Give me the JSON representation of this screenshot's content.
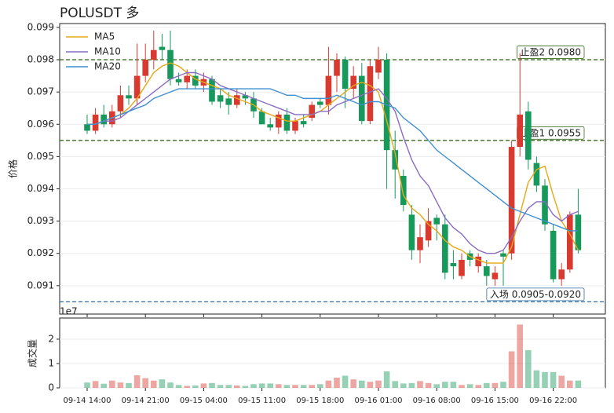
{
  "chart_data": {
    "type": "candlestick",
    "title": "POLUSDT 多",
    "y_label": "价格",
    "categories": [
      "09-14 14:00",
      null,
      null,
      null,
      null,
      null,
      null,
      "09-14 21:00",
      null,
      null,
      null,
      null,
      null,
      null,
      "09-15 04:00",
      null,
      null,
      null,
      null,
      null,
      null,
      "09-15 11:00",
      null,
      null,
      null,
      null,
      null,
      null,
      "09-15 18:00",
      null,
      null,
      null,
      null,
      null,
      null,
      "09-16 01:00",
      null,
      null,
      null,
      null,
      null,
      null,
      "09-16 08:00",
      null,
      null,
      null,
      null,
      null,
      null,
      "09-16 15:00",
      null,
      null,
      null,
      null,
      null,
      null,
      "09-16 22:00",
      null,
      null,
      null
    ],
    "open": [
      0.096,
      0.0958,
      0.0963,
      0.096,
      0.0964,
      0.0969,
      0.0968,
      0.0975,
      0.098,
      0.0984,
      0.0983,
      0.0974,
      0.0973,
      0.0975,
      0.0972,
      0.0974,
      0.0969,
      0.0968,
      0.0966,
      0.0969,
      0.0968,
      0.0964,
      0.096,
      0.0959,
      0.0963,
      0.0958,
      0.0961,
      0.0962,
      0.0967,
      0.0966,
      0.0975,
      0.098,
      0.0971,
      0.0975,
      0.0961,
      0.0976,
      0.098,
      0.0952,
      0.0944,
      0.0932,
      0.0921,
      0.0924,
      0.0931,
      0.0929,
      0.0917,
      0.0913,
      0.092,
      0.0916,
      0.0916,
      0.0912,
      0.092,
      0.092,
      0.0953,
      0.0964,
      0.0948,
      0.0941,
      0.0927,
      0.0912,
      0.0915,
      0.0932
    ],
    "high": [
      0.0963,
      0.0965,
      0.0966,
      0.0966,
      0.0972,
      0.0972,
      0.0985,
      0.0985,
      0.0989,
      0.0988,
      0.0989,
      0.0976,
      0.0977,
      0.0977,
      0.0976,
      0.0975,
      0.0971,
      0.097,
      0.0971,
      0.097,
      0.097,
      0.0965,
      0.0962,
      0.0964,
      0.0965,
      0.0962,
      0.0963,
      0.0967,
      0.0968,
      0.0984,
      0.0982,
      0.0981,
      0.0978,
      0.0979,
      0.098,
      0.0984,
      0.0982,
      0.0958,
      0.0946,
      0.0935,
      0.0929,
      0.0934,
      0.0932,
      0.0932,
      0.0921,
      0.092,
      0.0921,
      0.092,
      0.0918,
      0.0916,
      0.0921,
      0.0955,
      0.0982,
      0.0967,
      0.095,
      0.0943,
      0.0929,
      0.0917,
      0.0933,
      0.094
    ],
    "low": [
      0.0957,
      0.0957,
      0.0959,
      0.0959,
      0.0962,
      0.0966,
      0.0966,
      0.0973,
      0.0977,
      0.098,
      0.0972,
      0.0972,
      0.0971,
      0.0971,
      0.097,
      0.0966,
      0.0965,
      0.0963,
      0.0965,
      0.0966,
      0.0962,
      0.096,
      0.0958,
      0.0957,
      0.0957,
      0.0957,
      0.0959,
      0.0961,
      0.0965,
      0.0963,
      0.097,
      0.0965,
      0.0968,
      0.096,
      0.096,
      0.0974,
      0.094,
      0.0937,
      0.0933,
      0.0918,
      0.0917,
      0.0922,
      0.0924,
      0.0912,
      0.0912,
      0.0912,
      0.0916,
      0.0914,
      0.091,
      0.091,
      0.091,
      0.0918,
      0.095,
      0.0946,
      0.0939,
      0.0927,
      0.0911,
      0.091,
      0.0914,
      0.092
    ],
    "close": [
      0.0958,
      0.0963,
      0.096,
      0.0964,
      0.0969,
      0.0968,
      0.0975,
      0.098,
      0.0983,
      0.0983,
      0.0974,
      0.0973,
      0.0975,
      0.0972,
      0.0974,
      0.0967,
      0.0967,
      0.0966,
      0.0969,
      0.0968,
      0.0964,
      0.096,
      0.0959,
      0.0963,
      0.0958,
      0.0961,
      0.096,
      0.0966,
      0.0966,
      0.0975,
      0.098,
      0.0971,
      0.0975,
      0.0961,
      0.0978,
      0.098,
      0.0952,
      0.0946,
      0.0935,
      0.0921,
      0.0925,
      0.093,
      0.0929,
      0.0914,
      0.0916,
      0.0918,
      0.0918,
      0.0919,
      0.0913,
      0.0914,
      0.0919,
      0.0953,
      0.0963,
      0.0949,
      0.0941,
      0.0929,
      0.0912,
      0.0915,
      0.0932,
      0.0921
    ],
    "up_color": "#d83a2f",
    "down_color": "#16995a",
    "series": [
      {
        "name": "MA5",
        "color": "#e6a817",
        "values": [
          0.096,
          0.096,
          0.0961,
          0.0962,
          0.0963,
          0.0965,
          0.0968,
          0.0972,
          0.0976,
          0.0978,
          0.0979,
          0.0978,
          0.0976,
          0.0974,
          0.0973,
          0.0972,
          0.0971,
          0.0969,
          0.0968,
          0.0967,
          0.0966,
          0.0964,
          0.0963,
          0.0962,
          0.0961,
          0.0961,
          0.0962,
          0.0963,
          0.0964,
          0.0966,
          0.0968,
          0.097,
          0.0972,
          0.0973,
          0.0972,
          0.097,
          0.0961,
          0.0951,
          0.0938,
          0.0934,
          0.0932,
          0.0929,
          0.0927,
          0.0924,
          0.0922,
          0.0921,
          0.0919,
          0.0918,
          0.0917,
          0.0917,
          0.0917,
          0.0922,
          0.0932,
          0.0942,
          0.0946,
          0.0947,
          0.0938,
          0.093,
          0.0926,
          0.0921
        ]
      },
      {
        "name": "MA10",
        "color": "#8a6cc4",
        "values": [
          0.096,
          0.096,
          0.0961,
          0.0961,
          0.0962,
          0.0964,
          0.0966,
          0.0968,
          0.097,
          0.0972,
          0.0974,
          0.0975,
          0.0976,
          0.0976,
          0.0975,
          0.0974,
          0.0972,
          0.0971,
          0.097,
          0.0969,
          0.0968,
          0.0967,
          0.0966,
          0.0965,
          0.0964,
          0.0963,
          0.0963,
          0.0963,
          0.0964,
          0.0964,
          0.0966,
          0.0967,
          0.0968,
          0.0969,
          0.097,
          0.0971,
          0.0968,
          0.0964,
          0.0956,
          0.0949,
          0.0944,
          0.0941,
          0.0936,
          0.0931,
          0.0928,
          0.0926,
          0.0923,
          0.0921,
          0.092,
          0.092,
          0.0921,
          0.0925,
          0.093,
          0.0934,
          0.0936,
          0.0936,
          0.0932,
          0.093,
          0.0932,
          0.0933
        ]
      },
      {
        "name": "MA20",
        "color": "#3f8fd2",
        "values": [
          0.096,
          0.096,
          0.0961,
          0.0962,
          0.0963,
          0.0964,
          0.0965,
          0.0966,
          0.0968,
          0.0969,
          0.097,
          0.0971,
          0.0971,
          0.0971,
          0.0971,
          0.0971,
          0.0971,
          0.0971,
          0.0971,
          0.0971,
          0.0971,
          0.0971,
          0.0971,
          0.097,
          0.0969,
          0.0969,
          0.0968,
          0.0968,
          0.0968,
          0.0968,
          0.0969,
          0.0968,
          0.0967,
          0.0966,
          0.0967,
          0.0967,
          0.0966,
          0.0965,
          0.0962,
          0.096,
          0.0958,
          0.0955,
          0.0952,
          0.095,
          0.0948,
          0.0946,
          0.0944,
          0.0942,
          0.094,
          0.0938,
          0.0936,
          0.0934,
          0.0933,
          0.0932,
          0.0931,
          0.093,
          0.0929,
          0.0928,
          0.0927,
          0.0927
        ]
      }
    ],
    "ylim": [
      0.09012,
      0.09912
    ],
    "yticks": [
      0.091,
      0.092,
      0.093,
      0.094,
      0.095,
      0.096,
      0.097,
      0.098,
      0.099
    ],
    "grid": true,
    "legend": "upper left",
    "hlines": [
      {
        "value": 0.098,
        "label": "止盈2 0.0980",
        "color": "#3a6e1f"
      },
      {
        "value": 0.0955,
        "label": "止盈1 0.0955",
        "color": "#3a6e1f"
      },
      {
        "value": 0.0905,
        "label": "入场 0.0905-0.0920",
        "color": "#2e6da4"
      }
    ],
    "volume": {
      "type": "bar",
      "y_label": "成交量",
      "offset_label": "1e7",
      "ylim": [
        0,
        2.87
      ],
      "yticks": [
        0,
        1,
        2
      ],
      "values": [
        0.22,
        0.28,
        0.17,
        0.3,
        0.22,
        0.2,
        0.52,
        0.4,
        0.3,
        0.35,
        0.22,
        0.12,
        0.08,
        0.1,
        0.18,
        0.2,
        0.12,
        0.12,
        0.1,
        0.08,
        0.15,
        0.18,
        0.18,
        0.15,
        0.12,
        0.12,
        0.12,
        0.12,
        0.15,
        0.3,
        0.42,
        0.5,
        0.35,
        0.3,
        0.25,
        0.3,
        0.68,
        0.28,
        0.18,
        0.2,
        0.28,
        0.2,
        0.15,
        0.25,
        0.25,
        0.12,
        0.15,
        0.12,
        0.2,
        0.2,
        0.25,
        1.5,
        2.6,
        1.55,
        0.72,
        0.65,
        0.65,
        0.5,
        0.3,
        0.3
      ]
    }
  }
}
